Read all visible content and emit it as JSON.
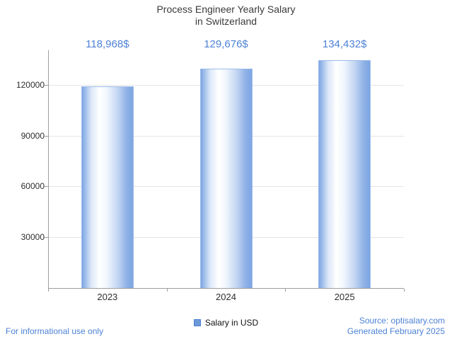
{
  "title": {
    "line1": "Process Engineer Yearly Salary",
    "line2": "in Switzerland"
  },
  "chart_data": {
    "type": "bar",
    "title": "Process Engineer Yearly Salary in Switzerland",
    "categories": [
      "2023",
      "2024",
      "2025"
    ],
    "values": [
      118968,
      129676,
      134432
    ],
    "value_labels": [
      "118,968$",
      "129,676$",
      "134,432$"
    ],
    "xlabel": "",
    "ylabel": "",
    "ylim": [
      0,
      140000
    ],
    "yticks": [
      30000,
      60000,
      90000,
      120000
    ],
    "grid": true,
    "legend": "Salary in USD",
    "legend_position": "bottom"
  },
  "footer": {
    "disclaimer": "For informational use only",
    "source": "Source: optisalary.com",
    "generated": "Generated February 2025"
  },
  "colors": {
    "accent_blue": "#4d82d6",
    "bar_edge_blue": "#7da6e3",
    "bar_border": "#9dbbea",
    "axis_gray": "#9e9e9e",
    "gridline_gray": "#e4e4e4",
    "title_gray": "#3a3a3a"
  }
}
